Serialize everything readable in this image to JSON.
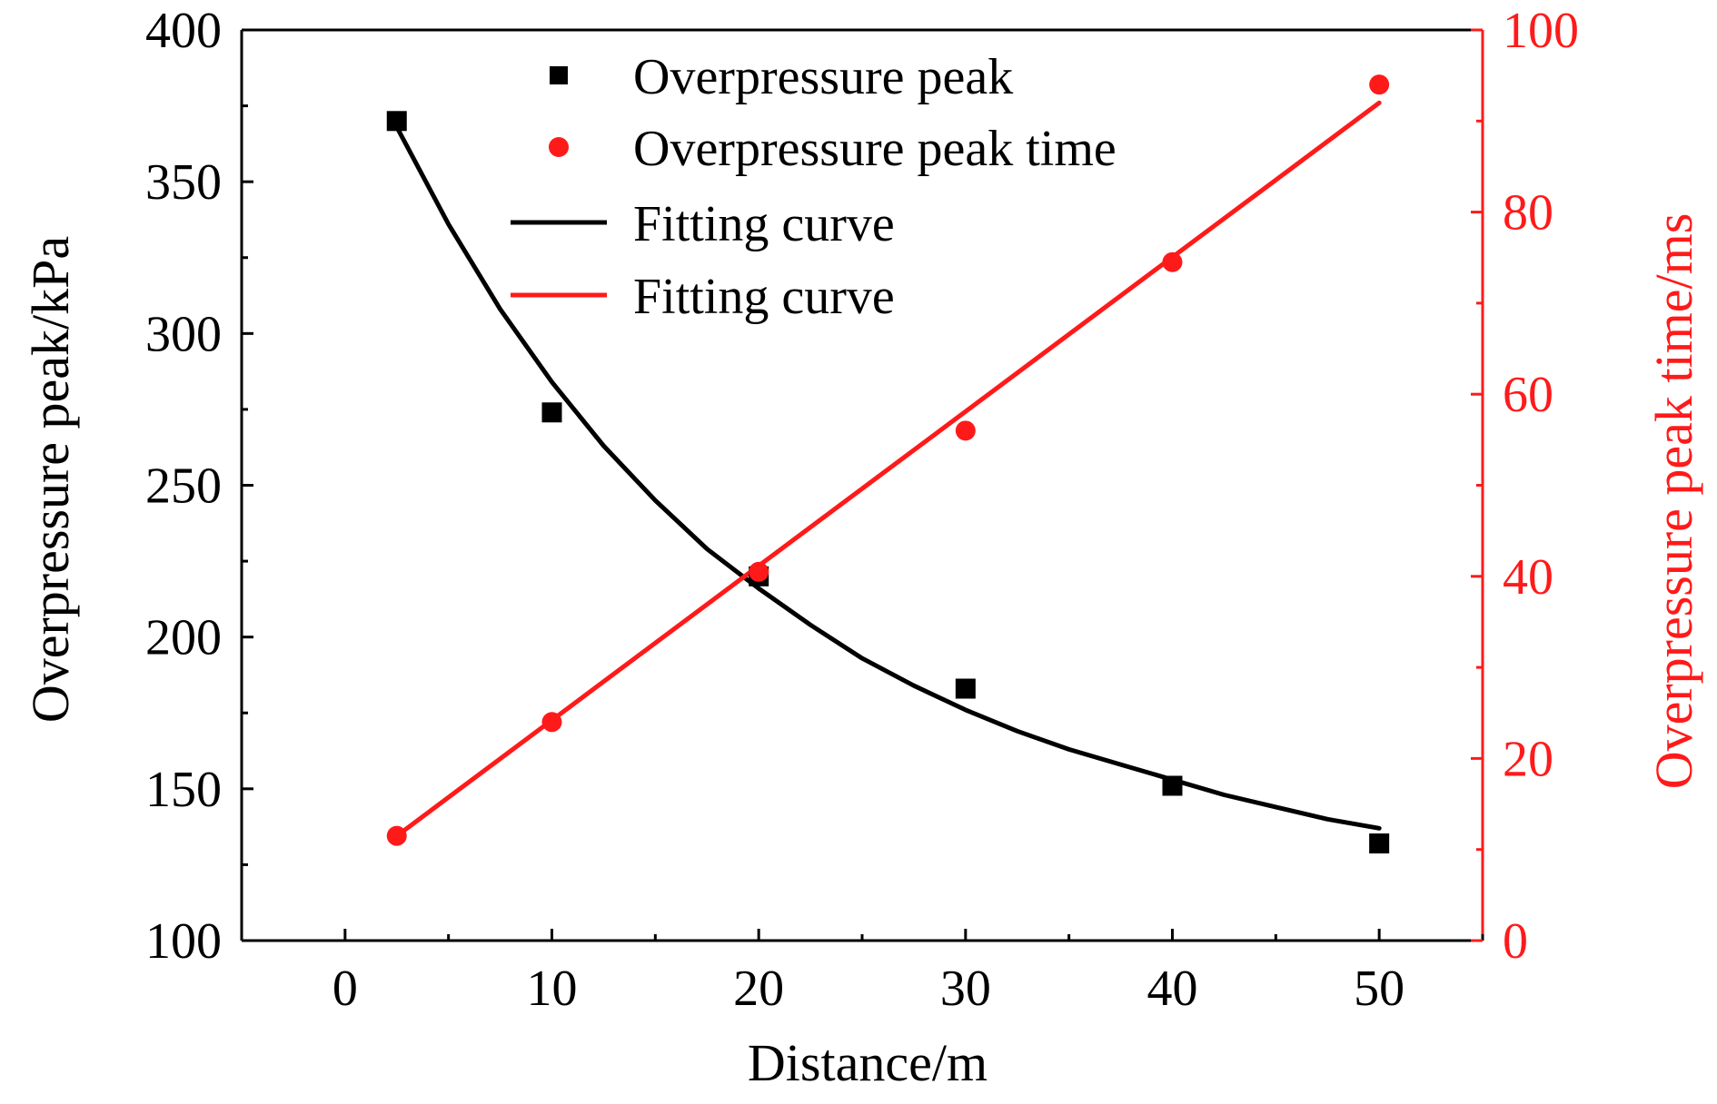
{
  "chart_data": {
    "type": "scatter",
    "xlabel": "Distance/m",
    "ylabel": "Overpressure peak/kPa",
    "y2label": "Overpressure peak time/ms",
    "xlim": [
      -5,
      55
    ],
    "ylim": [
      100,
      400
    ],
    "y2lim": [
      0,
      100
    ],
    "xticks": [
      0,
      10,
      20,
      30,
      40,
      50
    ],
    "yticks": [
      100,
      150,
      200,
      250,
      300,
      350,
      400
    ],
    "y2ticks": [
      0,
      20,
      40,
      60,
      80,
      100
    ],
    "grid": false,
    "legend_position": "top",
    "series": [
      {
        "name": "Overpressure peak",
        "kind": "points",
        "marker": "square",
        "axis": "left",
        "color": "#000000",
        "x": [
          2.5,
          10,
          20,
          30,
          40,
          50
        ],
        "y": [
          370,
          274,
          220,
          183,
          151,
          132
        ]
      },
      {
        "name": "Overpressure peak time",
        "kind": "points",
        "marker": "circle",
        "axis": "right",
        "color": "#ff1a1a",
        "x": [
          2.5,
          10,
          20,
          30,
          40,
          50
        ],
        "y": [
          11.5,
          24,
          40.5,
          56,
          74.5,
          94
        ]
      },
      {
        "name": "Fitting curve",
        "kind": "line",
        "axis": "left",
        "color": "#000000",
        "x": [
          2.5,
          5,
          7.5,
          10,
          12.5,
          15,
          17.5,
          20,
          22.5,
          25,
          27.5,
          30,
          32.5,
          35,
          37.5,
          40,
          42.5,
          45,
          47.5,
          50
        ],
        "y": [
          368,
          336,
          308,
          284,
          263,
          245,
          229,
          216,
          204,
          193,
          184,
          176,
          169,
          163,
          158,
          153,
          148,
          144,
          140,
          137
        ]
      },
      {
        "name": "Fitting curve",
        "kind": "line",
        "axis": "right",
        "color": "#ff1a1a",
        "x": [
          2.5,
          50
        ],
        "y": [
          11.5,
          92
        ]
      }
    ]
  }
}
